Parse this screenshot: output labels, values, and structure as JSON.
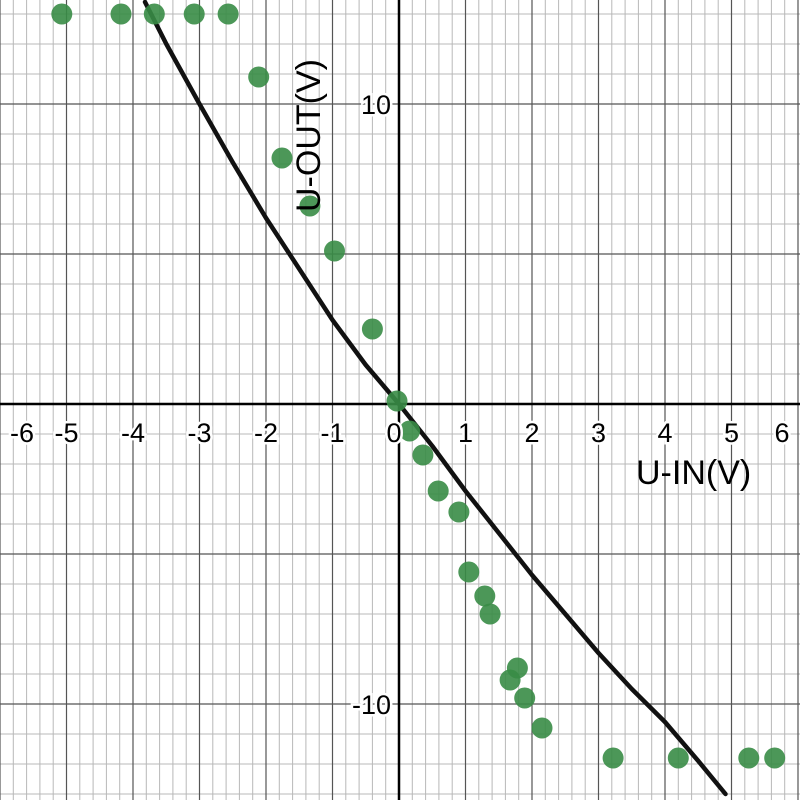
{
  "chart_data": {
    "type": "scatter",
    "xlabel": "U-IN(V)",
    "ylabel": "U-OUT(V)",
    "xlim": [
      -6,
      6
    ],
    "ylim": [
      -13,
      13.4
    ],
    "grid": true,
    "x_ticks": [
      {
        "value": -6,
        "label": "-6"
      },
      {
        "value": -5,
        "label": "-5"
      },
      {
        "value": -4,
        "label": "-4"
      },
      {
        "value": -3,
        "label": "-3"
      },
      {
        "value": -2,
        "label": "-2"
      },
      {
        "value": -1,
        "label": "-1"
      },
      {
        "value": 0,
        "label": "0"
      },
      {
        "value": 1,
        "label": "1"
      },
      {
        "value": 2,
        "label": "2"
      },
      {
        "value": 3,
        "label": "3"
      },
      {
        "value": 4,
        "label": "4"
      },
      {
        "value": 5,
        "label": "5"
      },
      {
        "value": 6,
        "label": "6"
      }
    ],
    "y_ticks": [
      {
        "value": 10,
        "label": "10"
      },
      {
        "value": -10,
        "label": "-10"
      }
    ],
    "points": [
      {
        "x": -5.07,
        "y": 13.0
      },
      {
        "x": -4.18,
        "y": 13.0
      },
      {
        "x": -3.68,
        "y": 13.0
      },
      {
        "x": -3.08,
        "y": 13.0
      },
      {
        "x": -2.57,
        "y": 13.0
      },
      {
        "x": -2.11,
        "y": 10.9
      },
      {
        "x": -1.76,
        "y": 8.2
      },
      {
        "x": -1.34,
        "y": 6.6
      },
      {
        "x": -0.97,
        "y": 5.1
      },
      {
        "x": -0.4,
        "y": 2.5
      },
      {
        "x": -0.03,
        "y": 0.1
      },
      {
        "x": 0.16,
        "y": -0.9
      },
      {
        "x": 0.36,
        "y": -1.7
      },
      {
        "x": 0.59,
        "y": -2.9
      },
      {
        "x": 0.9,
        "y": -3.6
      },
      {
        "x": 1.05,
        "y": -5.6
      },
      {
        "x": 1.29,
        "y": -6.4
      },
      {
        "x": 1.37,
        "y": -7.0
      },
      {
        "x": 1.67,
        "y": -9.2
      },
      {
        "x": 1.78,
        "y": -8.8
      },
      {
        "x": 1.89,
        "y": -9.8
      },
      {
        "x": 2.15,
        "y": -10.8
      },
      {
        "x": 3.22,
        "y": -11.8
      },
      {
        "x": 4.2,
        "y": -11.8
      },
      {
        "x": 5.26,
        "y": -11.8
      },
      {
        "x": 5.65,
        "y": -11.8
      }
    ],
    "fit_curve": {
      "x": [
        -3.82,
        -3.5,
        -3.0,
        -2.5,
        -2.0,
        -1.5,
        -1.0,
        -0.5,
        0.0,
        0.5,
        1.0,
        1.5,
        2.0,
        2.5,
        3.0,
        3.5,
        4.0,
        4.5,
        4.91
      ],
      "y": [
        13.4,
        12.0,
        10.0,
        8.05,
        6.2,
        4.5,
        2.8,
        1.3,
        0.0,
        -1.4,
        -2.9,
        -4.3,
        -5.7,
        -7.0,
        -8.3,
        -9.5,
        -10.6,
        -11.9,
        -13.0
      ]
    },
    "colors": {
      "points": "#388c46",
      "curve": "#111111",
      "axis": "#000000",
      "grid_major": "#555555",
      "grid_minor": "#b8b8b8"
    }
  }
}
